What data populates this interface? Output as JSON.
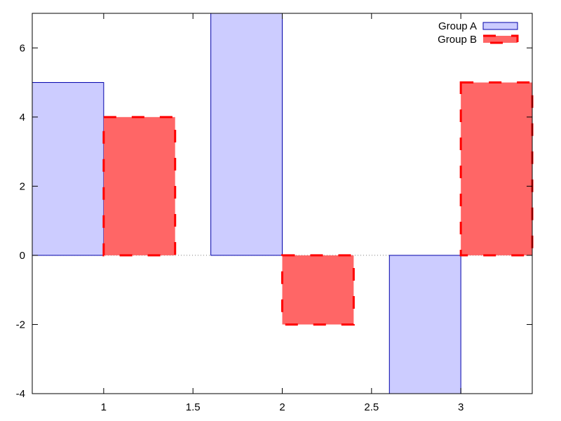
{
  "chart_data": {
    "type": "bar",
    "title": "",
    "xlabel": "",
    "ylabel": "",
    "xlim": [
      0.6,
      3.4
    ],
    "ylim": [
      -4,
      7
    ],
    "grid": false,
    "legend_position": "top-right",
    "bar_width": 0.4,
    "zero_line": "dotted",
    "x_ticks": [
      1,
      1.5,
      2,
      2.5,
      3
    ],
    "x_tick_labels": [
      "1",
      "1.5",
      "2",
      "2.5",
      "3"
    ],
    "y_ticks": [
      -4,
      -2,
      0,
      2,
      4,
      6
    ],
    "y_tick_labels": [
      "-4",
      "-2",
      "0",
      "2",
      "4",
      "6"
    ],
    "series": [
      {
        "name": "Group A",
        "x": [
          0.8,
          1.8,
          2.8
        ],
        "values": [
          5,
          7,
          -4
        ],
        "fill": "#ccccff",
        "stroke": "#0000aa",
        "dashed": false
      },
      {
        "name": "Group B",
        "x": [
          1.2,
          2.2,
          3.2
        ],
        "values": [
          4,
          -2,
          5
        ],
        "fill": "#ff6666",
        "stroke": "#ff0000",
        "dashed": true
      }
    ]
  }
}
